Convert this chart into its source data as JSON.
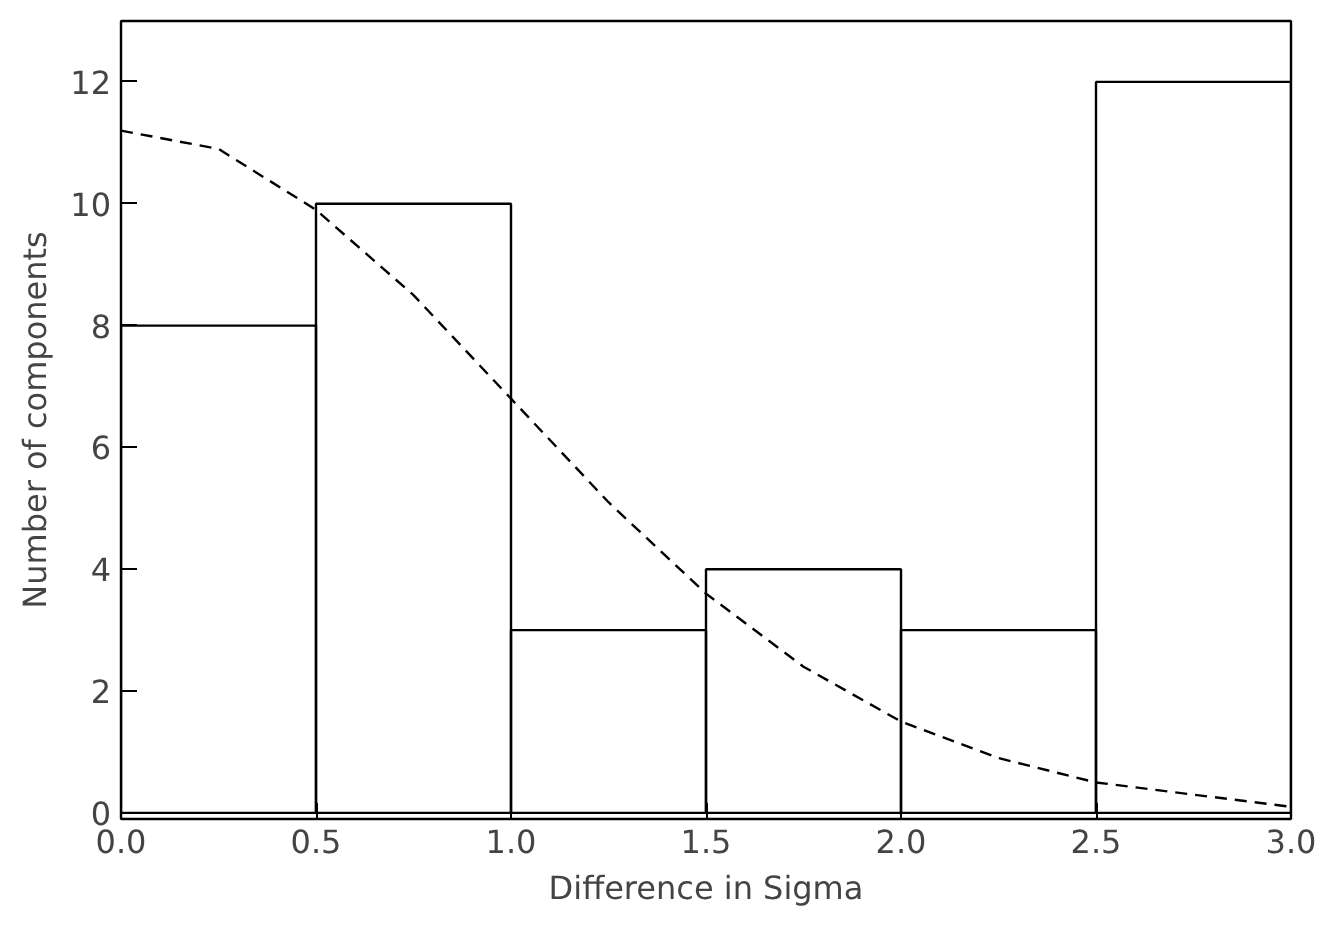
{
  "chart_data": {
    "type": "histogram",
    "xlabel": "Difference in Sigma",
    "ylabel": "Number of components",
    "bins": [
      0,
      0.5,
      1.0,
      1.5,
      2.0,
      2.5,
      3.0
    ],
    "values": [
      8,
      10,
      3,
      4,
      3,
      12
    ],
    "color": "#000000",
    "series": [
      {
        "type": "line",
        "line_style": "dashed",
        "color": "#000000",
        "x": [
          0,
          0.25,
          0.5,
          0.75,
          1.0,
          1.25,
          1.5,
          1.75,
          2.0,
          2.25,
          2.5,
          2.75,
          3.0
        ],
        "values": [
          11.2,
          10.9,
          9.9,
          8.5,
          6.8,
          5.1,
          3.6,
          2.4,
          1.5,
          0.9,
          0.5,
          0.3,
          0.1
        ]
      }
    ],
    "xlim": [
      0,
      3
    ],
    "ylim": [
      -0.1,
      13
    ],
    "xticks": [
      {
        "value": 0,
        "label": "0.0"
      },
      {
        "value": 0.5,
        "label": "0.5"
      },
      {
        "value": 1,
        "label": "1.0"
      },
      {
        "value": 1.5,
        "label": "1.5"
      },
      {
        "value": 2,
        "label": "2.0"
      },
      {
        "value": 2.5,
        "label": "2.5"
      },
      {
        "value": 3,
        "label": "3.0"
      }
    ],
    "yticks": [
      0,
      2,
      4,
      6,
      8,
      10,
      12
    ],
    "grid": false
  }
}
